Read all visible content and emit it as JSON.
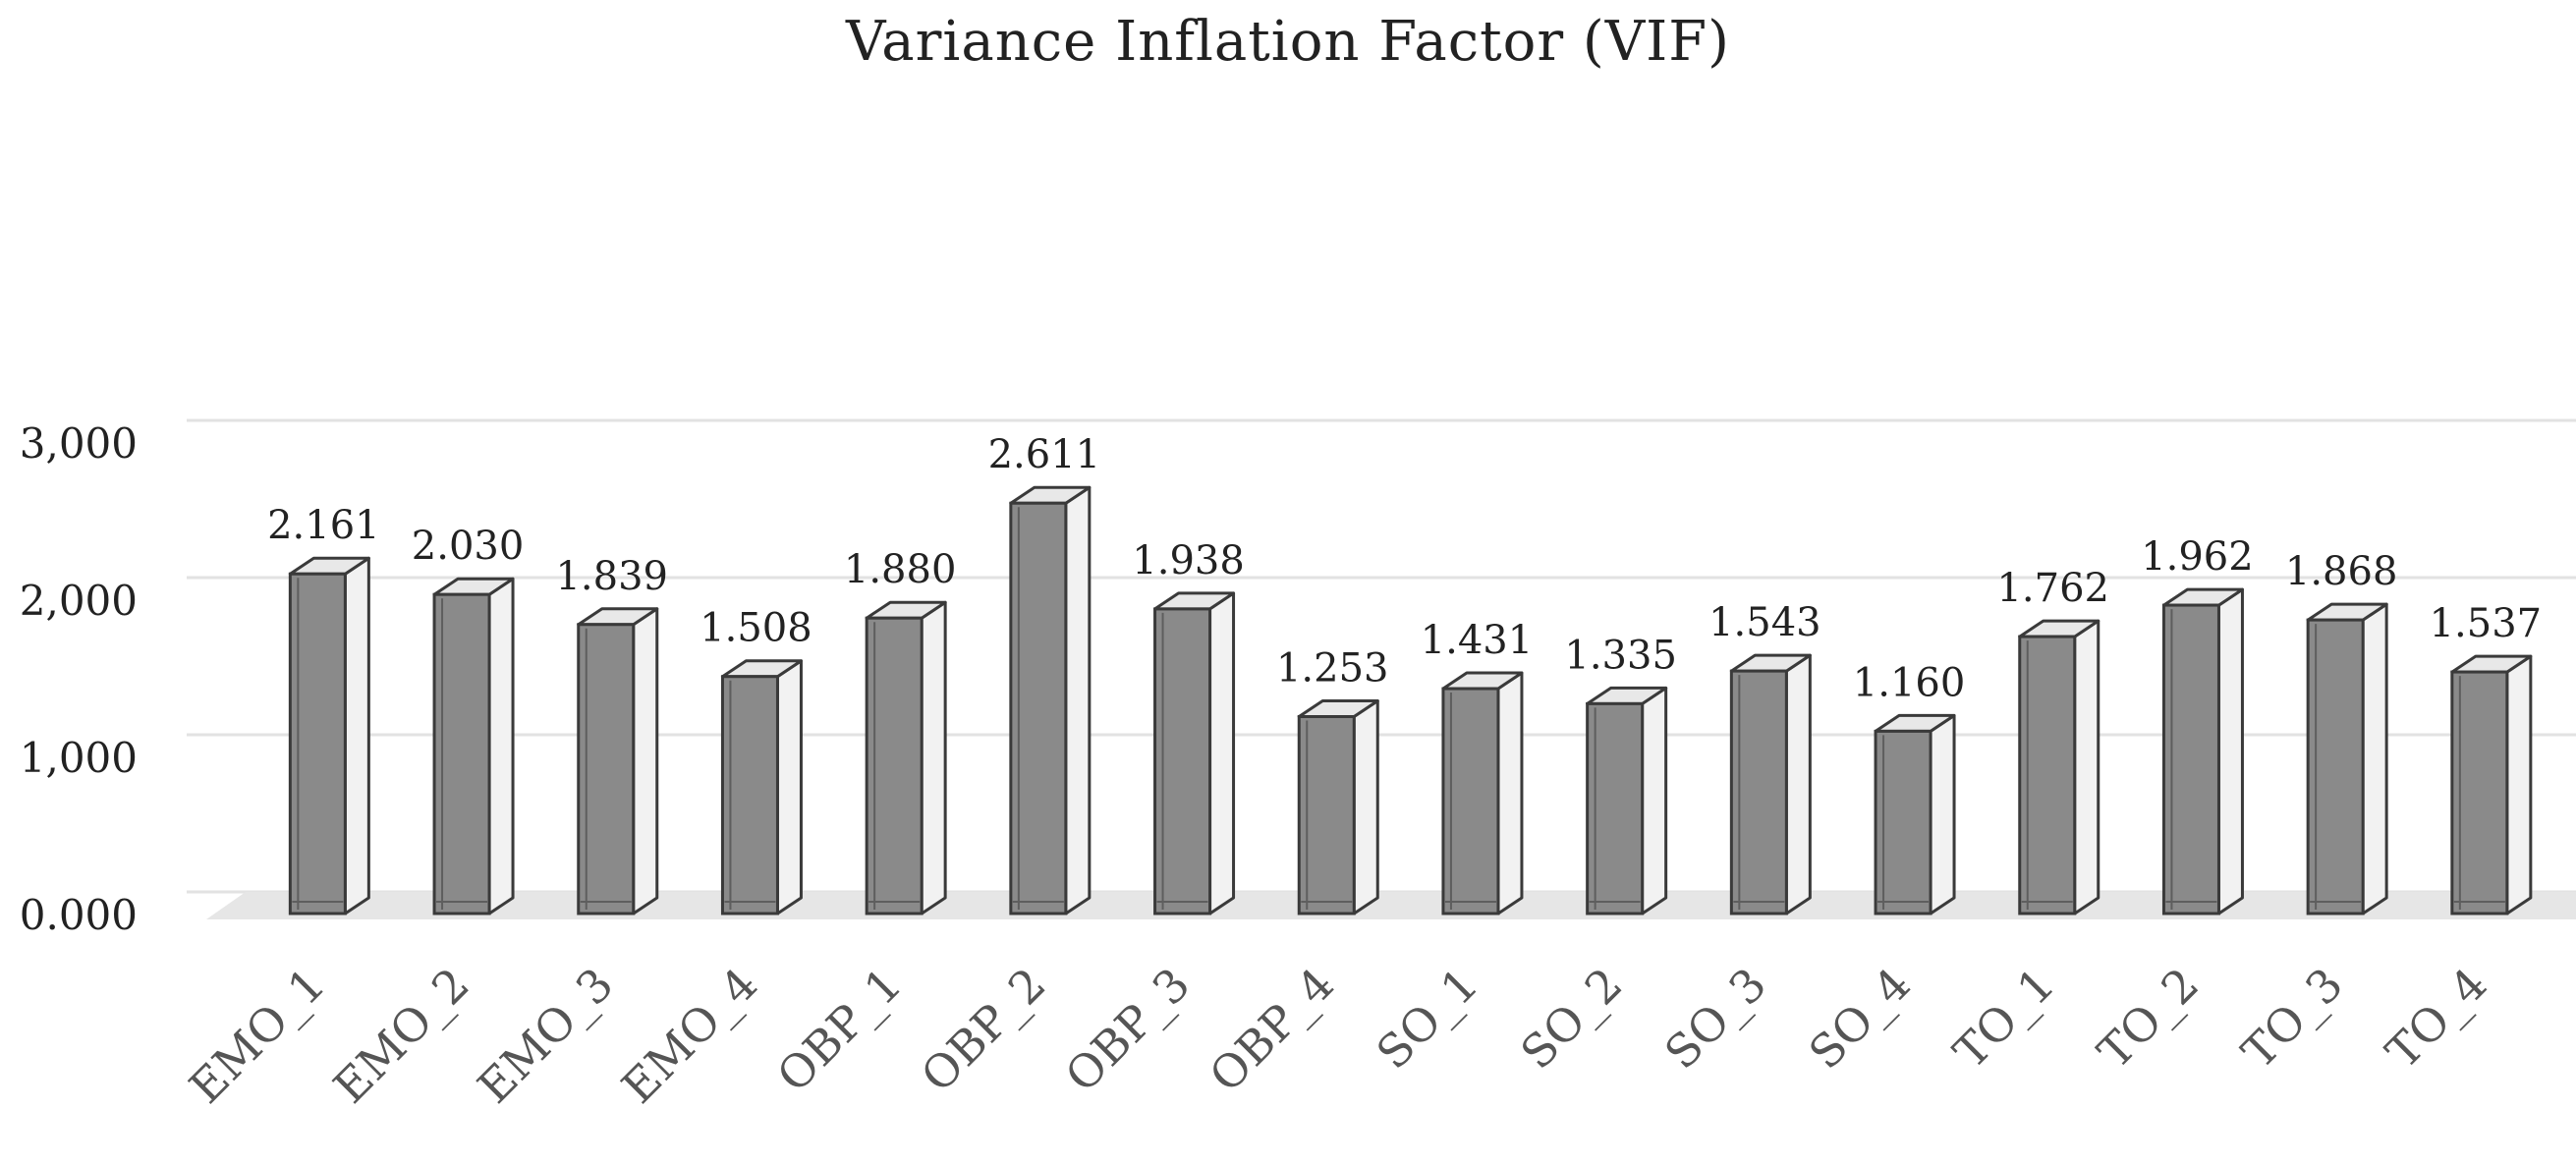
{
  "chart_data": {
    "type": "bar",
    "title": "Variance Inflation Factor (VIF)",
    "categories": [
      "EMO_1",
      "EMO_2",
      "EMO_3",
      "EMO_4",
      "OBP_1",
      "OBP_2",
      "OBP_3",
      "OBP_4",
      "SO_1",
      "SO_2",
      "SO_3",
      "SO_4",
      "TO_1",
      "TO_2",
      "TO_3",
      "TO_4"
    ],
    "values": [
      2.161,
      2.03,
      1.839,
      1.508,
      1.88,
      2.611,
      1.938,
      1.253,
      1.431,
      1.335,
      1.543,
      1.16,
      1.762,
      1.962,
      1.868,
      1.537
    ],
    "data_labels": [
      "2.161",
      "2.030",
      "1.839",
      "1.508",
      "1.880",
      "2.611",
      "1.938",
      "1.253",
      "1.431",
      "1.335",
      "1.543",
      "1.160",
      "1.762",
      "1.962",
      "1.868",
      "1.537"
    ],
    "y_ticks": [
      0,
      1,
      2,
      3
    ],
    "y_tick_labels": [
      "0.000",
      "1,000",
      "2,000",
      "3,000"
    ],
    "ylim": [
      0,
      3
    ],
    "xlabel": "",
    "ylabel": "",
    "grid": true,
    "style": "3d-column",
    "legend": "none",
    "colors": {
      "bar_front": "#8a8a8a",
      "bar_side": "#f2f2f2",
      "bar_top": "#e8e8e8",
      "bar_edge": "#3a3a3a",
      "floor": "#e6e6e6",
      "gridline": "#e2e2e2",
      "text": "#222222",
      "tick_text": "#555555"
    }
  }
}
